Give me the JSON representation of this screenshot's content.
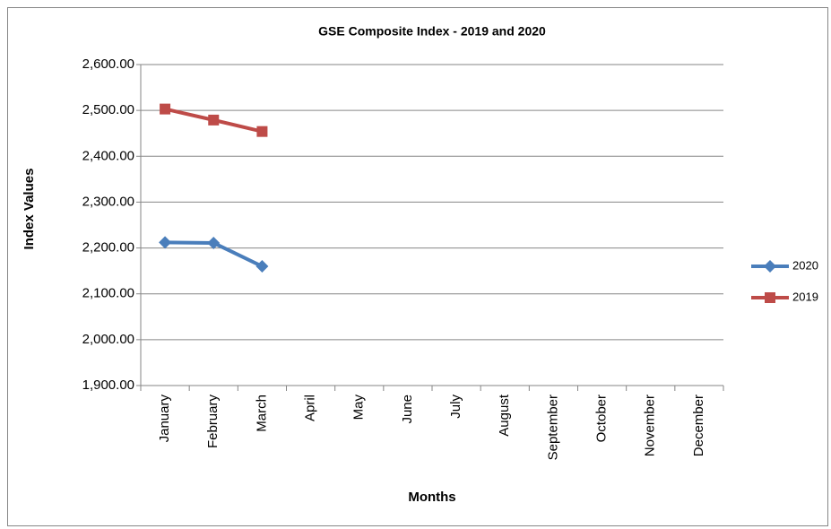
{
  "chart_data": {
    "type": "line",
    "title": "GSE Composite Index -  2019 and 2020",
    "x_label": "Months",
    "y_label": "Index Values",
    "categories": [
      "January",
      "February",
      "March",
      "April",
      "May",
      "June",
      "July",
      "August",
      "September",
      "October",
      "November",
      "December"
    ],
    "series": [
      {
        "name": "2020",
        "color": "#4a7ebb",
        "marker": "diamond",
        "values": [
          2212,
          2211,
          2160,
          null,
          null,
          null,
          null,
          null,
          null,
          null,
          null,
          null
        ]
      },
      {
        "name": "2019",
        "color": "#be4b48",
        "marker": "square",
        "values": [
          2503,
          2479,
          2454,
          null,
          null,
          null,
          null,
          null,
          null,
          null,
          null,
          null
        ]
      }
    ],
    "ylim": [
      1900,
      2600
    ],
    "yticks": [
      {
        "value": 1900,
        "label": "1,900.00"
      },
      {
        "value": 2000,
        "label": "2,000.00"
      },
      {
        "value": 2100,
        "label": "2,100.00"
      },
      {
        "value": 2200,
        "label": "2,200.00"
      },
      {
        "value": 2300,
        "label": "2,300.00"
      },
      {
        "value": 2400,
        "label": "2,400.00"
      },
      {
        "value": 2500,
        "label": "2,500.00"
      },
      {
        "value": 2600,
        "label": "2,600.00"
      }
    ],
    "grid": true,
    "legend": "right"
  }
}
